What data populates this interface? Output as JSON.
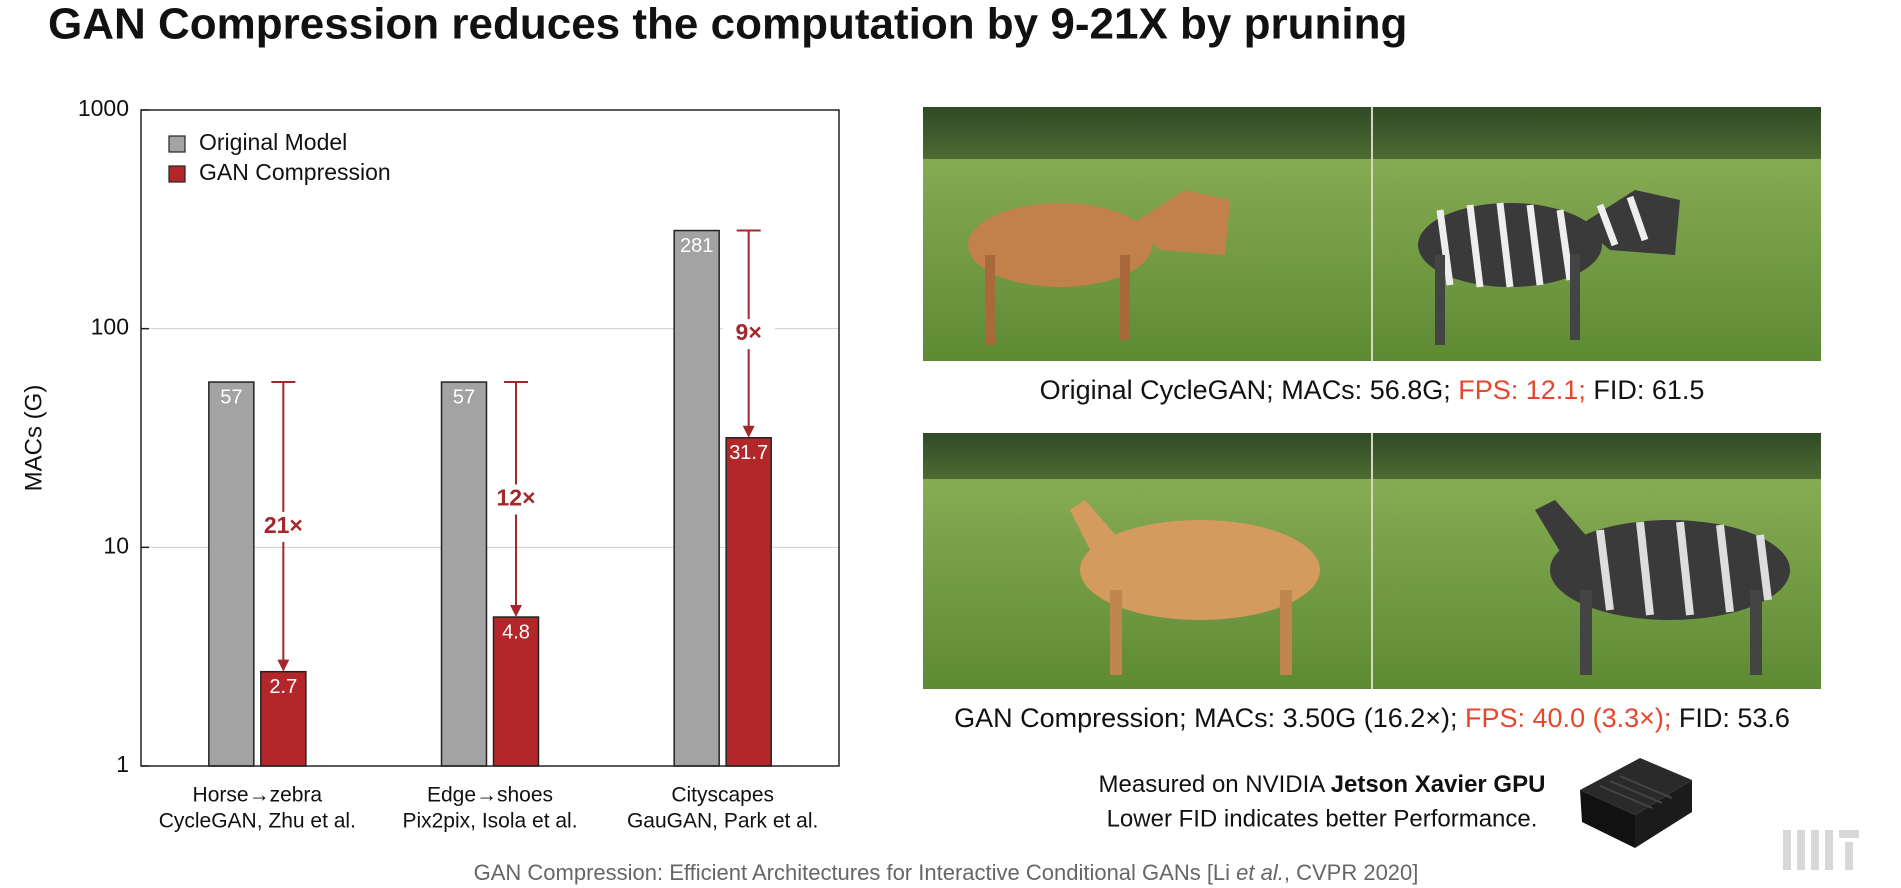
{
  "slide_title": "GAN Compression reduces the computation by 9-21X by pruning",
  "chart_data": {
    "type": "bar",
    "y_label": "MACs (G)",
    "categories": [
      [
        "Horse→zebra",
        "CycleGAN, Zhu et al."
      ],
      [
        "Edge→shoes",
        "Pix2pix, Isola et al."
      ],
      [
        "Cityscapes",
        "GauGAN, Park et al."
      ]
    ],
    "series": [
      {
        "name": "Original Model",
        "color": "#a3a3a3",
        "values": [
          57,
          57,
          281
        ]
      },
      {
        "name": "GAN Compression",
        "color": "#b3272a",
        "values": [
          2.7,
          4.8,
          31.7
        ]
      }
    ],
    "reduction_labels": [
      "21×",
      "12×",
      "9×"
    ],
    "reduction_color": "#a3282b",
    "ylim": [
      1,
      1000
    ],
    "yticks": [
      1,
      10,
      100,
      1000
    ],
    "log_scale": true,
    "grid": true,
    "legend": "upper-left"
  },
  "captions": [
    {
      "parts": [
        "Original CycleGAN; MACs: 56.8G; ",
        "FPS: 12.1;",
        " FID: 61.5"
      ],
      "highlight_part": 1,
      "highlight_color": "#e8452c"
    },
    {
      "parts": [
        "GAN Compression; MACs: 3.50G (16.2×); ",
        "FPS: 40.0 (3.3×);",
        " FID: 53.6"
      ],
      "highlight_part": 1,
      "highlight_color": "#e8452c"
    }
  ],
  "note": {
    "line1_prefix": "Measured on NVIDIA ",
    "line1_bold": "Jetson Xavier GPU",
    "line2": "Lower FID indicates better Performance."
  },
  "citation": {
    "prefix": "GAN Compression: Efficient Architectures for Interactive Conditional GANs [Li ",
    "italic": "et al.",
    "suffix": ", CVPR 2020]"
  }
}
